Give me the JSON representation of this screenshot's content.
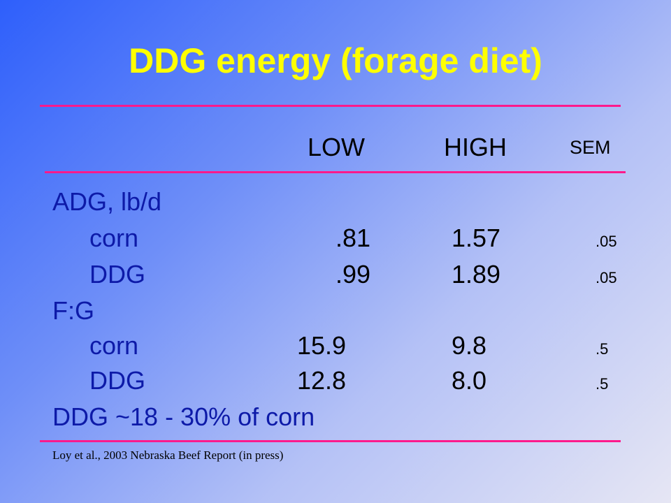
{
  "title": "DDG energy (forage diet)",
  "header": {
    "low": "LOW",
    "high": "HIGH",
    "sem": "SEM"
  },
  "adg": {
    "label": "ADG, lb/d",
    "corn": {
      "label": "corn",
      "low": ".81",
      "high": "1.57",
      "sem": ".05"
    },
    "ddg": {
      "label": "DDG",
      "low": ".99",
      "high": "1.89",
      "sem": ".05"
    }
  },
  "fg": {
    "label": "F:G",
    "corn": {
      "label": "corn",
      "low": "15.9",
      "high": "9.8",
      "sem": ".5"
    },
    "ddg": {
      "label": "DDG",
      "low": "12.8",
      "high": "8.0",
      "sem": ".5"
    }
  },
  "summary": "DDG ~18 - 30% of corn",
  "footnote": "Loy et al., 2003 Nebraska Beef Report (in press)",
  "colors": {
    "title": "#ffff00",
    "rule": "#ff1a8c",
    "label": "#0d1aa8"
  }
}
